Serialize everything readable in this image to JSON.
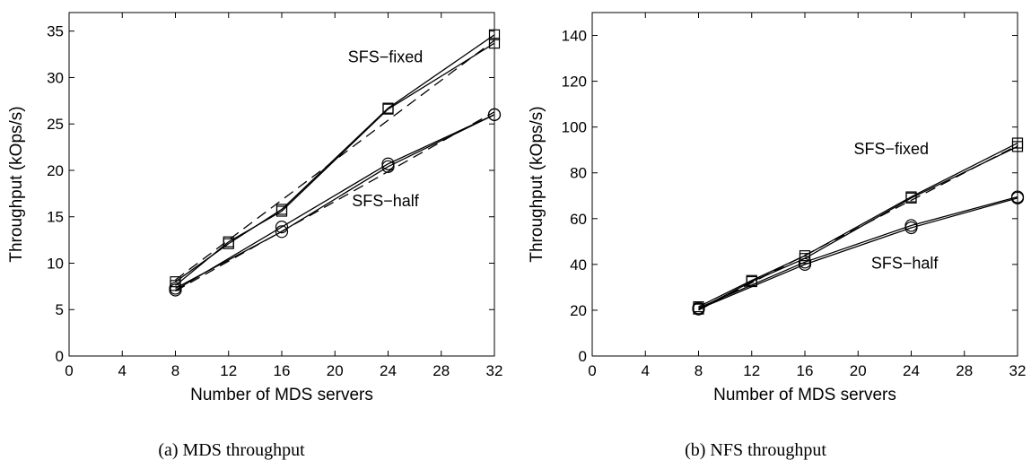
{
  "chart_data": [
    {
      "type": "line",
      "caption": "(a) MDS throughput",
      "xlabel": "Number of MDS servers",
      "ylabel": "Throughput (kOps/s)",
      "xlim": [
        0,
        32
      ],
      "ylim": [
        0,
        37
      ],
      "xticks": [
        0,
        4,
        8,
        12,
        16,
        20,
        24,
        28,
        32
      ],
      "yticks": [
        0,
        5,
        10,
        15,
        20,
        25,
        30,
        35
      ],
      "grid": false,
      "series": [
        {
          "marker": "square",
          "style": "solid",
          "x": [
            8,
            12,
            16,
            24,
            32
          ],
          "y": [
            8.0,
            12.1,
            15.8,
            26.7,
            34.6
          ]
        },
        {
          "marker": "square",
          "style": "solid",
          "x": [
            8,
            12,
            16,
            24,
            32
          ],
          "y": [
            7.6,
            12.3,
            15.6,
            26.6,
            33.7
          ]
        },
        {
          "marker": "none",
          "style": "dashed",
          "x": [
            8,
            32
          ],
          "y": [
            8.2,
            34.0
          ]
        },
        {
          "marker": "circle",
          "style": "solid",
          "x": [
            8,
            16,
            24,
            32
          ],
          "y": [
            7.1,
            13.9,
            20.7,
            26.0
          ]
        },
        {
          "marker": "circle",
          "style": "solid",
          "x": [
            8,
            16,
            24,
            32
          ],
          "y": [
            7.3,
            13.4,
            20.4,
            26.0
          ]
        },
        {
          "marker": "none",
          "style": "dashed",
          "x": [
            8,
            32
          ],
          "y": [
            7.0,
            26.3
          ]
        }
      ],
      "annotations": [
        {
          "text": "SFS−fixed",
          "x": 23.8,
          "y": 32.2
        },
        {
          "text": "SFS−half",
          "x": 23.8,
          "y": 16.7
        }
      ]
    },
    {
      "type": "line",
      "caption": "(b) NFS throughput",
      "xlabel": "Number of MDS servers",
      "ylabel": "Throughput (kOps/s)",
      "xlim": [
        0,
        32
      ],
      "ylim": [
        0,
        150
      ],
      "xticks": [
        0,
        4,
        8,
        12,
        16,
        20,
        24,
        28,
        32
      ],
      "yticks": [
        0,
        20,
        40,
        60,
        80,
        100,
        120,
        140
      ],
      "grid": false,
      "series": [
        {
          "marker": "square",
          "style": "solid",
          "x": [
            8,
            12,
            16,
            24,
            32
          ],
          "y": [
            21.5,
            33.0,
            43.8,
            69.5,
            93.0
          ]
        },
        {
          "marker": "square",
          "style": "solid",
          "x": [
            8,
            12,
            16,
            24,
            32
          ],
          "y": [
            20.5,
            32.5,
            42.6,
            69.0,
            91.5
          ]
        },
        {
          "marker": "none",
          "style": "dashed",
          "x": [
            8,
            32
          ],
          "y": [
            20.0,
            92.0
          ]
        },
        {
          "marker": "circle",
          "style": "solid",
          "x": [
            8,
            16,
            24,
            32
          ],
          "y": [
            21.0,
            41.0,
            57.0,
            69.5
          ]
        },
        {
          "marker": "circle",
          "style": "solid",
          "x": [
            8,
            16,
            24,
            32
          ],
          "y": [
            20.5,
            40.0,
            56.0,
            69.0
          ]
        }
      ],
      "annotations": [
        {
          "text": "SFS−fixed",
          "x": 22.5,
          "y": 90.5
        },
        {
          "text": "SFS−half",
          "x": 23.5,
          "y": 40.5
        }
      ]
    }
  ]
}
